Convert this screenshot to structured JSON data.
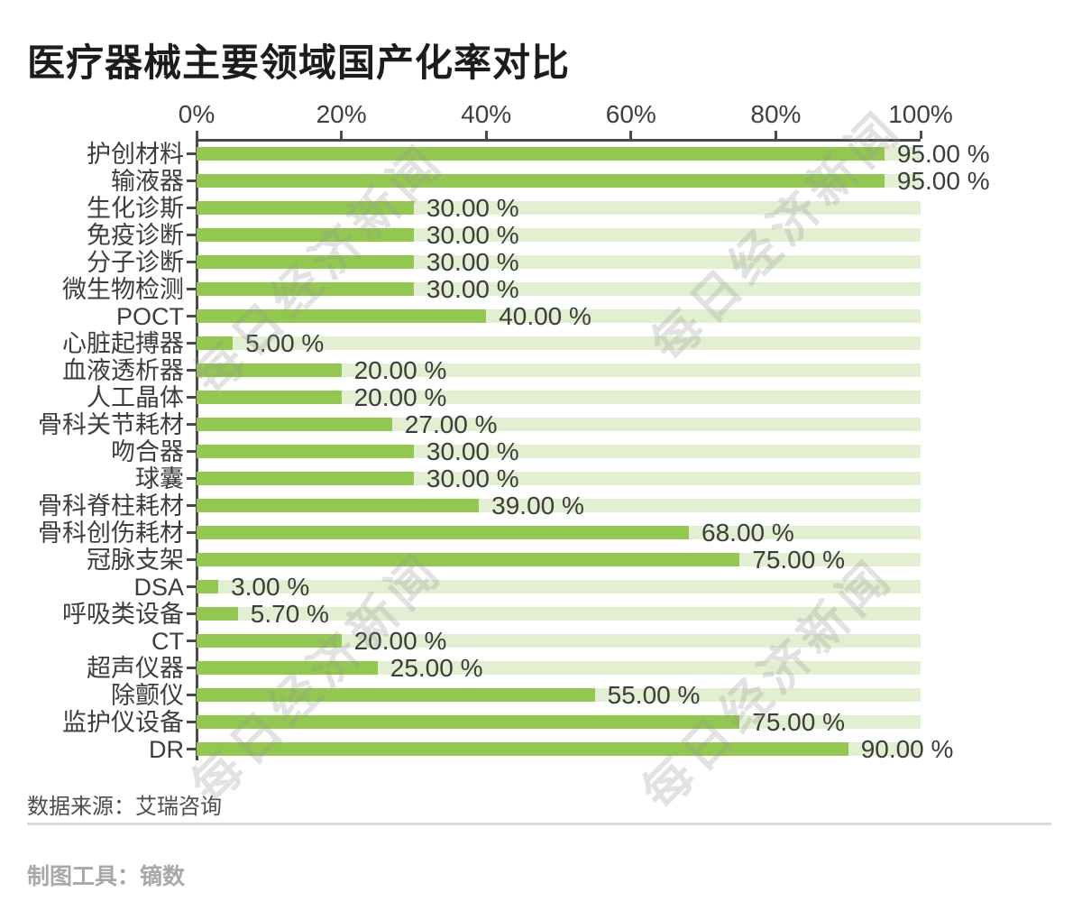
{
  "title": "医疗器械主要领域国产化率对比",
  "watermark": {
    "text": "每日经济新闻"
  },
  "footer": {
    "source": "数据来源：艾瑞咨询",
    "tool": "制图工具：镝数"
  },
  "chart_data": {
    "type": "bar",
    "orientation": "horizontal",
    "title": "医疗器械主要领域国产化率对比",
    "xlabel": "",
    "ylabel": "",
    "xlim": [
      0,
      100
    ],
    "grid": false,
    "legend": "none",
    "axis_tick_labels": [
      "0%",
      "20%",
      "40%",
      "60%",
      "80%",
      "100%"
    ],
    "categories": [
      "护创材料",
      "输液器",
      "生化诊斯",
      "免疫诊断",
      "分子诊断",
      "微生物检测",
      "POCT",
      "心脏起搏器",
      "血液透析器",
      "人工晶体",
      "骨科关节耗材",
      "吻合器",
      "球囊",
      "骨科脊柱耗材",
      "骨科创伤耗材",
      "冠脉支架",
      "DSA",
      "呼吸类设备",
      "CT",
      "超声仪器",
      "除颤仪",
      "监护仪设备",
      "DR"
    ],
    "values": [
      95,
      95,
      30,
      30,
      30,
      30,
      40,
      5,
      20,
      20,
      27,
      30,
      30,
      39,
      68,
      75,
      3,
      5.7,
      20,
      25,
      55,
      75,
      90
    ],
    "value_labels": [
      "95.00 %",
      "95.00 %",
      "30.00 %",
      "30.00 %",
      "30.00 %",
      "30.00 %",
      "40.00 %",
      "5.00 %",
      "20.00 %",
      "20.00 %",
      "27.00 %",
      "30.00 %",
      "30.00 %",
      "39.00 %",
      "68.00 %",
      "75.00 %",
      "3.00 %",
      "5.70 %",
      "20.00 %",
      "25.00 %",
      "55.00 %",
      "75.00 %",
      "90.00 %"
    ],
    "colors": {
      "bar": "#92C850",
      "track": "#E2EFD1",
      "axis": "#4A4A4A",
      "text": "#3D3D3D"
    }
  }
}
